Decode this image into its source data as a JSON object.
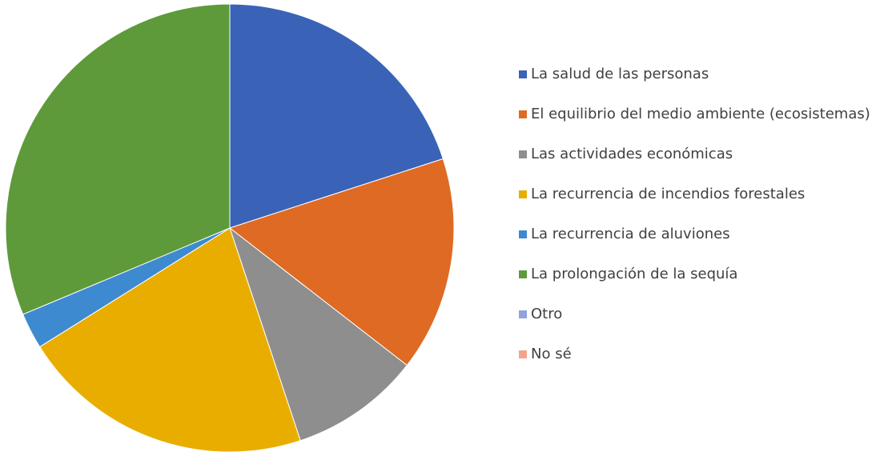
{
  "chart_data": {
    "type": "pie",
    "categories": [
      "La salud de las personas",
      "El equilibrio del medio ambiente (ecosistemas)",
      "Las actividades económicas",
      "La recurrencia de incendios forestales",
      "La recurrencia de aluviones",
      "La prolongación de la sequía",
      "Otro",
      "No sé"
    ],
    "values": [
      20,
      15.5,
      9.4,
      21.2,
      2.6,
      31.3,
      0,
      0
    ],
    "colors": [
      "#3a63b8",
      "#df6a24",
      "#8e8e8e",
      "#e9ad00",
      "#3d8ad0",
      "#5e9a3a",
      "#8fa3dc",
      "#f2a58c"
    ],
    "legend": "right"
  }
}
